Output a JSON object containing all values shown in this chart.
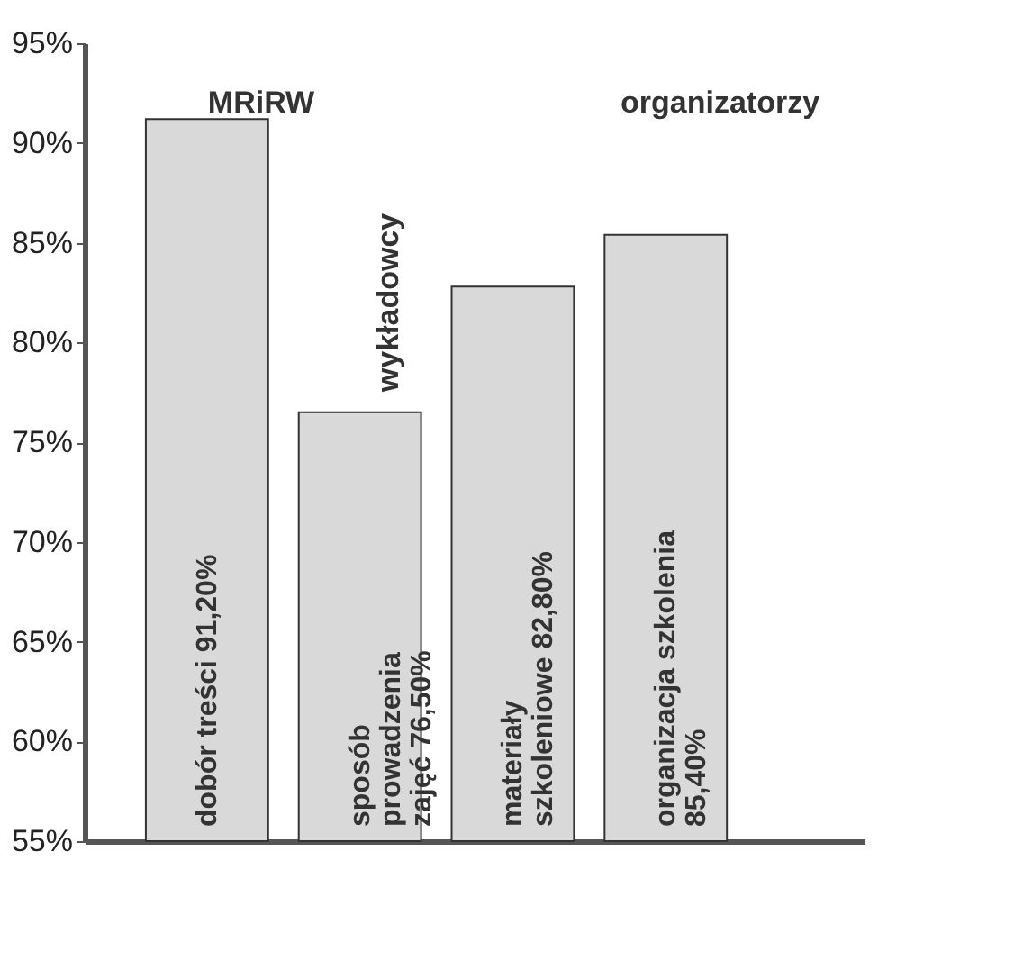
{
  "chart_data": {
    "type": "bar",
    "categories": [
      "dobór treści",
      "sposób prowadzenia zajęć",
      "materiały szkoleniowe",
      "organizacja szkolenia"
    ],
    "values": [
      91.2,
      76.5,
      82.8,
      85.4
    ],
    "value_labels": [
      "91,20%",
      "76,50%",
      "82,80%",
      "85,40%"
    ],
    "color": "#d9d9d9",
    "ylim": [
      55,
      95
    ],
    "yticks": [
      {
        "value": 55,
        "label": "55%"
      },
      {
        "value": 60,
        "label": "60%"
      },
      {
        "value": 65,
        "label": "65%"
      },
      {
        "value": 70,
        "label": "70%"
      },
      {
        "value": 75,
        "label": "75%"
      },
      {
        "value": 80,
        "label": "80%"
      },
      {
        "value": 85,
        "label": "85%"
      },
      {
        "value": 90,
        "label": "90%"
      },
      {
        "value": 95,
        "label": "95%"
      }
    ],
    "annotations": [
      "MRiRW",
      "wykładowcy",
      "organizatorzy"
    ],
    "tick_labels": "y",
    "grid": false
  }
}
